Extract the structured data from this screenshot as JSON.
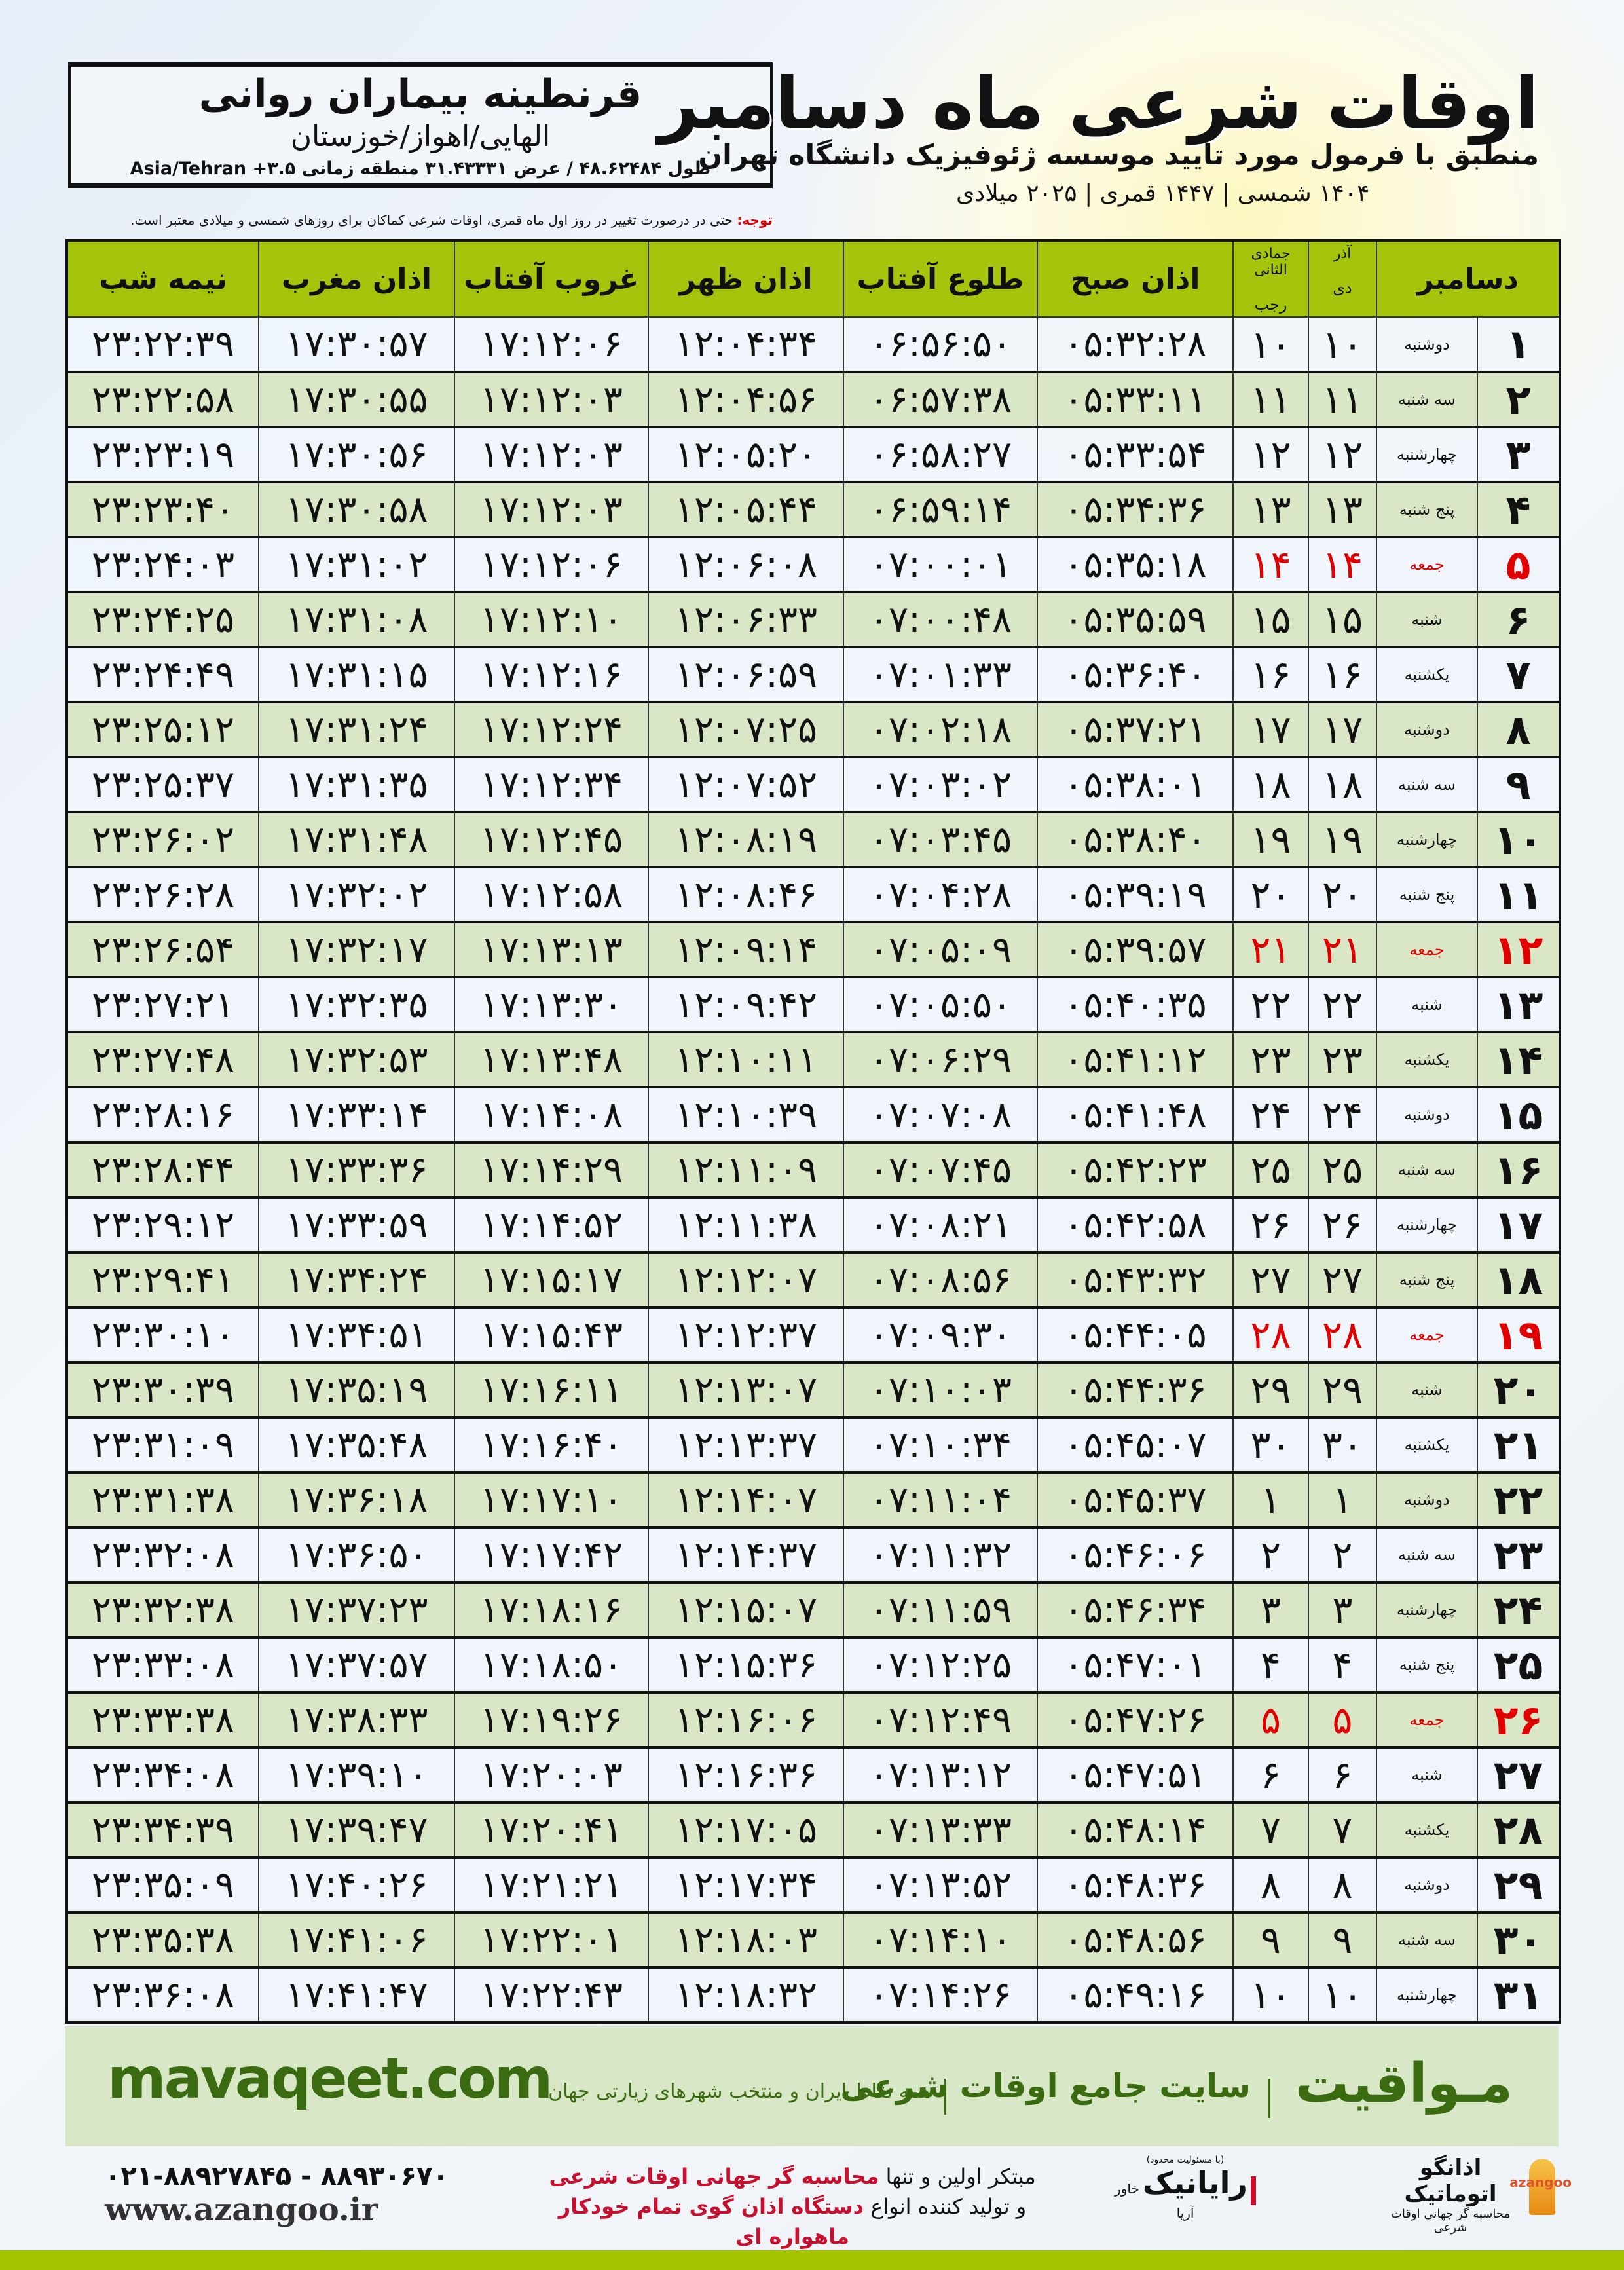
{
  "location": {
    "name": "قرنطینه بیماران روانی",
    "region": "الهایی/اهواز/خوزستان",
    "coords": "طول ۴۸.۶۲۴۸۴ / عرض ۳۱.۴۳۳۳۱ منطقه زمانی ۳.۵+ Asia/Tehran"
  },
  "header": {
    "title": "اوقات شرعی ماه دسامبر",
    "subtitle": "منطبق با فرمول مورد تایید موسسه ژئوفیزیک دانشگاه تهران",
    "dates": "۱۴۰۴ شمسی | ۱۴۴۷ قمری | ۲۰۲۵ میلادی"
  },
  "note": {
    "label": "توجه:",
    "text": " حتی در درصورت تغییر در روز اول ماه قمری، اوقات شرعی کماکان برای روزهای شمسی و میلادی معتبر است."
  },
  "columns": {
    "month": "دسامبر",
    "dey_top": "آذر",
    "dey": "دی",
    "rajab_top": "جمادی الثانی",
    "rajab": "رجب",
    "fajr": "اذان صبح",
    "sunrise": "طلوع آفتاب",
    "dhuhr": "اذان ظهر",
    "sunset": "غروب آفتاب",
    "maghrib": "اذان مغرب",
    "midnight": "نیمه شب"
  },
  "colors": {
    "header_green": "#a6c40c",
    "row_green": "#d9e7c7",
    "friday_red": "#e00000",
    "brand_green": "#3a6b10"
  },
  "rows": [
    [
      "۱",
      "دوشنبه",
      "۱۰",
      "۱۰",
      "۰۵:۳۲:۲۸",
      "۰۶:۵۶:۵۰",
      "۱۲:۰۴:۳۴",
      "۱۷:۱۲:۰۶",
      "۱۷:۳۰:۵۷",
      "۲۳:۲۲:۳۹",
      false
    ],
    [
      "۲",
      "سه شنبه",
      "۱۱",
      "۱۱",
      "۰۵:۳۳:۱۱",
      "۰۶:۵۷:۳۸",
      "۱۲:۰۴:۵۶",
      "۱۷:۱۲:۰۳",
      "۱۷:۳۰:۵۵",
      "۲۳:۲۲:۵۸",
      false
    ],
    [
      "۳",
      "چهارشنبه",
      "۱۲",
      "۱۲",
      "۰۵:۳۳:۵۴",
      "۰۶:۵۸:۲۷",
      "۱۲:۰۵:۲۰",
      "۱۷:۱۲:۰۳",
      "۱۷:۳۰:۵۶",
      "۲۳:۲۳:۱۹",
      false
    ],
    [
      "۴",
      "پنج شنبه",
      "۱۳",
      "۱۳",
      "۰۵:۳۴:۳۶",
      "۰۶:۵۹:۱۴",
      "۱۲:۰۵:۴۴",
      "۱۷:۱۲:۰۳",
      "۱۷:۳۰:۵۸",
      "۲۳:۲۳:۴۰",
      false
    ],
    [
      "۵",
      "جمعه",
      "۱۴",
      "۱۴",
      "۰۵:۳۵:۱۸",
      "۰۷:۰۰:۰۱",
      "۱۲:۰۶:۰۸",
      "۱۷:۱۲:۰۶",
      "۱۷:۳۱:۰۲",
      "۲۳:۲۴:۰۳",
      true
    ],
    [
      "۶",
      "شنبه",
      "۱۵",
      "۱۵",
      "۰۵:۳۵:۵۹",
      "۰۷:۰۰:۴۸",
      "۱۲:۰۶:۳۳",
      "۱۷:۱۲:۱۰",
      "۱۷:۳۱:۰۸",
      "۲۳:۲۴:۲۵",
      false
    ],
    [
      "۷",
      "یکشنبه",
      "۱۶",
      "۱۶",
      "۰۵:۳۶:۴۰",
      "۰۷:۰۱:۳۳",
      "۱۲:۰۶:۵۹",
      "۱۷:۱۲:۱۶",
      "۱۷:۳۱:۱۵",
      "۲۳:۲۴:۴۹",
      false
    ],
    [
      "۸",
      "دوشنبه",
      "۱۷",
      "۱۷",
      "۰۵:۳۷:۲۱",
      "۰۷:۰۲:۱۸",
      "۱۲:۰۷:۲۵",
      "۱۷:۱۲:۲۴",
      "۱۷:۳۱:۲۴",
      "۲۳:۲۵:۱۲",
      false
    ],
    [
      "۹",
      "سه شنبه",
      "۱۸",
      "۱۸",
      "۰۵:۳۸:۰۱",
      "۰۷:۰۳:۰۲",
      "۱۲:۰۷:۵۲",
      "۱۷:۱۲:۳۴",
      "۱۷:۳۱:۳۵",
      "۲۳:۲۵:۳۷",
      false
    ],
    [
      "۱۰",
      "چهارشنبه",
      "۱۹",
      "۱۹",
      "۰۵:۳۸:۴۰",
      "۰۷:۰۳:۴۵",
      "۱۲:۰۸:۱۹",
      "۱۷:۱۲:۴۵",
      "۱۷:۳۱:۴۸",
      "۲۳:۲۶:۰۲",
      false
    ],
    [
      "۱۱",
      "پنج شنبه",
      "۲۰",
      "۲۰",
      "۰۵:۳۹:۱۹",
      "۰۷:۰۴:۲۸",
      "۱۲:۰۸:۴۶",
      "۱۷:۱۲:۵۸",
      "۱۷:۳۲:۰۲",
      "۲۳:۲۶:۲۸",
      false
    ],
    [
      "۱۲",
      "جمعه",
      "۲۱",
      "۲۱",
      "۰۵:۳۹:۵۷",
      "۰۷:۰۵:۰۹",
      "۱۲:۰۹:۱۴",
      "۱۷:۱۳:۱۳",
      "۱۷:۳۲:۱۷",
      "۲۳:۲۶:۵۴",
      true
    ],
    [
      "۱۳",
      "شنبه",
      "۲۲",
      "۲۲",
      "۰۵:۴۰:۳۵",
      "۰۷:۰۵:۵۰",
      "۱۲:۰۹:۴۲",
      "۱۷:۱۳:۳۰",
      "۱۷:۳۲:۳۵",
      "۲۳:۲۷:۲۱",
      false
    ],
    [
      "۱۴",
      "یکشنبه",
      "۲۳",
      "۲۳",
      "۰۵:۴۱:۱۲",
      "۰۷:۰۶:۲۹",
      "۱۲:۱۰:۱۱",
      "۱۷:۱۳:۴۸",
      "۱۷:۳۲:۵۳",
      "۲۳:۲۷:۴۸",
      false
    ],
    [
      "۱۵",
      "دوشنبه",
      "۲۴",
      "۲۴",
      "۰۵:۴۱:۴۸",
      "۰۷:۰۷:۰۸",
      "۱۲:۱۰:۳۹",
      "۱۷:۱۴:۰۸",
      "۱۷:۳۳:۱۴",
      "۲۳:۲۸:۱۶",
      false
    ],
    [
      "۱۶",
      "سه شنبه",
      "۲۵",
      "۲۵",
      "۰۵:۴۲:۲۳",
      "۰۷:۰۷:۴۵",
      "۱۲:۱۱:۰۹",
      "۱۷:۱۴:۲۹",
      "۱۷:۳۳:۳۶",
      "۲۳:۲۸:۴۴",
      false
    ],
    [
      "۱۷",
      "چهارشنبه",
      "۲۶",
      "۲۶",
      "۰۵:۴۲:۵۸",
      "۰۷:۰۸:۲۱",
      "۱۲:۱۱:۳۸",
      "۱۷:۱۴:۵۲",
      "۱۷:۳۳:۵۹",
      "۲۳:۲۹:۱۲",
      false
    ],
    [
      "۱۸",
      "پنج شنبه",
      "۲۷",
      "۲۷",
      "۰۵:۴۳:۳۲",
      "۰۷:۰۸:۵۶",
      "۱۲:۱۲:۰۷",
      "۱۷:۱۵:۱۷",
      "۱۷:۳۴:۲۴",
      "۲۳:۲۹:۴۱",
      false
    ],
    [
      "۱۹",
      "جمعه",
      "۲۸",
      "۲۸",
      "۰۵:۴۴:۰۵",
      "۰۷:۰۹:۳۰",
      "۱۲:۱۲:۳۷",
      "۱۷:۱۵:۴۳",
      "۱۷:۳۴:۵۱",
      "۲۳:۳۰:۱۰",
      true
    ],
    [
      "۲۰",
      "شنبه",
      "۲۹",
      "۲۹",
      "۰۵:۴۴:۳۶",
      "۰۷:۱۰:۰۳",
      "۱۲:۱۳:۰۷",
      "۱۷:۱۶:۱۱",
      "۱۷:۳۵:۱۹",
      "۲۳:۳۰:۳۹",
      false
    ],
    [
      "۲۱",
      "یکشنبه",
      "۳۰",
      "۳۰",
      "۰۵:۴۵:۰۷",
      "۰۷:۱۰:۳۴",
      "۱۲:۱۳:۳۷",
      "۱۷:۱۶:۴۰",
      "۱۷:۳۵:۴۸",
      "۲۳:۳۱:۰۹",
      false
    ],
    [
      "۲۲",
      "دوشنبه",
      "۱",
      "۱",
      "۰۵:۴۵:۳۷",
      "۰۷:۱۱:۰۴",
      "۱۲:۱۴:۰۷",
      "۱۷:۱۷:۱۰",
      "۱۷:۳۶:۱۸",
      "۲۳:۳۱:۳۸",
      false
    ],
    [
      "۲۳",
      "سه شنبه",
      "۲",
      "۲",
      "۰۵:۴۶:۰۶",
      "۰۷:۱۱:۳۲",
      "۱۲:۱۴:۳۷",
      "۱۷:۱۷:۴۲",
      "۱۷:۳۶:۵۰",
      "۲۳:۳۲:۰۸",
      false
    ],
    [
      "۲۴",
      "چهارشنبه",
      "۳",
      "۳",
      "۰۵:۴۶:۳۴",
      "۰۷:۱۱:۵۹",
      "۱۲:۱۵:۰۷",
      "۱۷:۱۸:۱۶",
      "۱۷:۳۷:۲۳",
      "۲۳:۳۲:۳۸",
      false
    ],
    [
      "۲۵",
      "پنج شنبه",
      "۴",
      "۴",
      "۰۵:۴۷:۰۱",
      "۰۷:۱۲:۲۵",
      "۱۲:۱۵:۳۶",
      "۱۷:۱۸:۵۰",
      "۱۷:۳۷:۵۷",
      "۲۳:۳۳:۰۸",
      false
    ],
    [
      "۲۶",
      "جمعه",
      "۵",
      "۵",
      "۰۵:۴۷:۲۶",
      "۰۷:۱۲:۴۹",
      "۱۲:۱۶:۰۶",
      "۱۷:۱۹:۲۶",
      "۱۷:۳۸:۳۳",
      "۲۳:۳۳:۳۸",
      true
    ],
    [
      "۲۷",
      "شنبه",
      "۶",
      "۶",
      "۰۵:۴۷:۵۱",
      "۰۷:۱۳:۱۲",
      "۱۲:۱۶:۳۶",
      "۱۷:۲۰:۰۳",
      "۱۷:۳۹:۱۰",
      "۲۳:۳۴:۰۸",
      false
    ],
    [
      "۲۸",
      "یکشنبه",
      "۷",
      "۷",
      "۰۵:۴۸:۱۴",
      "۰۷:۱۳:۳۳",
      "۱۲:۱۷:۰۵",
      "۱۷:۲۰:۴۱",
      "۱۷:۳۹:۴۷",
      "۲۳:۳۴:۳۹",
      false
    ],
    [
      "۲۹",
      "دوشنبه",
      "۸",
      "۸",
      "۰۵:۴۸:۳۶",
      "۰۷:۱۳:۵۲",
      "۱۲:۱۷:۳۴",
      "۱۷:۲۱:۲۱",
      "۱۷:۴۰:۲۶",
      "۲۳:۳۵:۰۹",
      false
    ],
    [
      "۳۰",
      "سه شنبه",
      "۹",
      "۹",
      "۰۵:۴۸:۵۶",
      "۰۷:۱۴:۱۰",
      "۱۲:۱۸:۰۳",
      "۱۷:۲۲:۰۱",
      "۱۷:۴۱:۰۶",
      "۲۳:۳۵:۳۸",
      false
    ],
    [
      "۳۱",
      "چهارشنبه",
      "۱۰",
      "۱۰",
      "۰۵:۴۹:۱۶",
      "۰۷:۱۴:۲۶",
      "۱۲:۱۸:۳۲",
      "۱۷:۲۲:۴۳",
      "۱۷:۴۱:۴۷",
      "۲۳:۳۶:۰۸",
      false
    ]
  ],
  "banner": {
    "logo": "مـواقیت",
    "site": "سایت جامع اوقات شرعی",
    "tagline": "همه نقاط ایران و منتخب شهرهای زیارتی جهان",
    "url": "mavaqeet.com"
  },
  "footer": {
    "azangoo_name": "اذانگو اتوماتیک",
    "azangoo_sub": "محاسبه گر جهانی اوقات شرعی",
    "azangoo_en": "azangoo",
    "rayanik_limited": "(با مسئولیت محدود)",
    "rayanik_name": "رایانیک",
    "rayanik_sub": "خاور آریا",
    "promo1_a": "مبتکر اولین و تنها ",
    "promo1_b": "محاسبه گر جهانی اوقات شرعی",
    "promo2_a": "و تولید کننده انواع ",
    "promo2_b": "دستگاه اذان گوی تمام خودکار ماهواره ای",
    "phone": "۰۲۱-۸۸۹۲۷۸۴۵ - ۸۸۹۳۰۶۷۰",
    "website": "www.azangoo.ir"
  }
}
